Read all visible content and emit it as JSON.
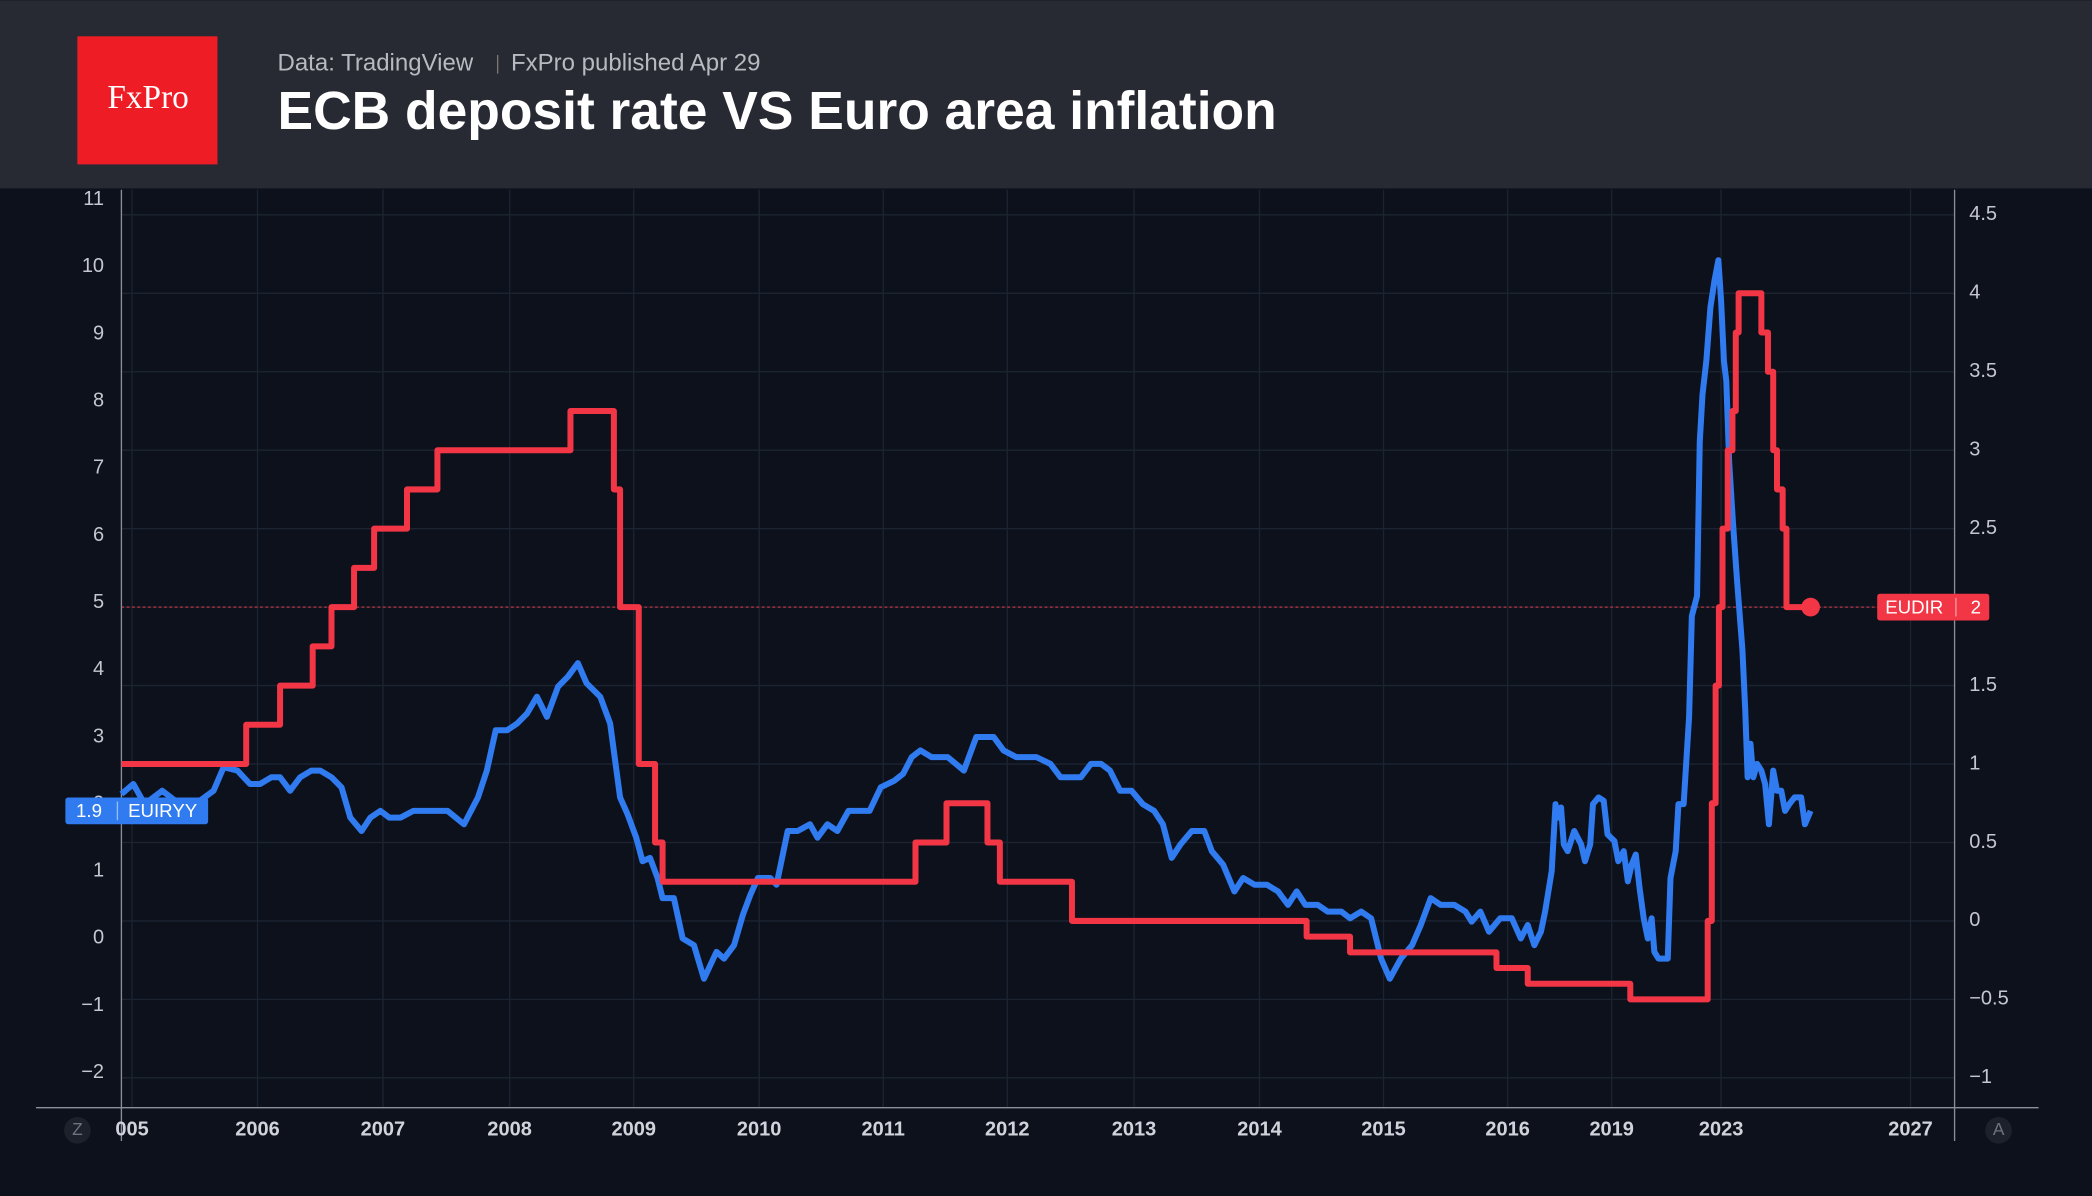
{
  "header": {
    "logo": "FxPro",
    "source": "Data: TradingView",
    "published": "FxPro published Apr 29"
  },
  "ui": {
    "left_button": "Z",
    "right_button": "A"
  },
  "chart_data": {
    "type": "line",
    "title": "ECB deposit rate VS Euro area inflation",
    "grid": true,
    "xlim": [
      2004.91,
      2027.93
    ],
    "xticks": [
      {
        "value": 2005,
        "label": "005"
      },
      2006,
      2007,
      2008,
      2009,
      2010,
      2011,
      2012,
      2013,
      2014,
      2015,
      2016,
      2019,
      2023,
      2027
    ],
    "ylim": [
      -2.52,
      11.15
    ],
    "yticks": [
      11,
      10,
      9,
      8,
      7,
      6,
      5,
      4,
      3,
      2,
      1,
      0,
      {
        "value": -1,
        "label": "−1"
      },
      {
        "value": -2,
        "label": "−2"
      }
    ],
    "y2lim": [
      -1.19,
      4.66
    ],
    "y2ticks": [
      4.5,
      4,
      3.5,
      3,
      2.5,
      2,
      1.5,
      1,
      0.5,
      0,
      {
        "value": -0.5,
        "label": "−0.5"
      },
      {
        "value": -1,
        "label": "−1"
      }
    ],
    "series": [
      {
        "name": "EUIRYY",
        "color": "#2f7bef",
        "axis": "y",
        "x": [
          2004.91,
          2005.01,
          2005.1,
          2005.24,
          2005.38,
          2005.54,
          2005.65,
          2005.73,
          2005.84,
          2005.94,
          2006.02,
          2006.11,
          2006.18,
          2006.26,
          2006.34,
          2006.43,
          2006.5,
          2006.59,
          2006.67,
          2006.74,
          2006.83,
          2006.9,
          2006.98,
          2007.05,
          2007.14,
          2007.24,
          2007.51,
          2007.64,
          2007.75,
          2007.82,
          2007.89,
          2007.98,
          2008.06,
          2008.14,
          2008.22,
          2008.3,
          2008.39,
          2008.47,
          2008.55,
          2008.62,
          2008.73,
          2008.81,
          2008.89,
          2008.95,
          2009.02,
          2009.07,
          2009.13,
          2009.19,
          2009.23,
          2009.32,
          2009.39,
          2009.48,
          2009.56,
          2009.66,
          2009.72,
          2009.8,
          2009.87,
          2009.93,
          2009.99,
          2010.09,
          2010.14,
          2010.23,
          2010.31,
          2010.41,
          2010.47,
          2010.55,
          2010.63,
          2010.72,
          2010.89,
          2010.98,
          2011.09,
          2011.16,
          2011.23,
          2011.3,
          2011.39,
          2011.52,
          2011.65,
          2011.75,
          2011.89,
          2011.97,
          2012.07,
          2012.23,
          2012.34,
          2012.42,
          2012.58,
          2012.66,
          2012.74,
          2012.81,
          2012.89,
          2012.98,
          2013.07,
          2013.16,
          2013.23,
          2013.3,
          2013.37,
          2013.46,
          2013.56,
          2013.62,
          2013.71,
          2013.8,
          2013.87,
          2013.96,
          2014.06,
          2014.15,
          2014.23,
          2014.3,
          2014.37,
          2014.47,
          2014.55,
          2014.66,
          2014.73,
          2014.82,
          2014.9,
          2014.98,
          2015.05,
          2015.14,
          2015.23,
          2015.3,
          2015.38,
          2015.46,
          2015.57,
          2015.66,
          2015.71,
          2015.78,
          2015.85,
          2015.94,
          2016.12,
          2016.38,
          2016.58,
          2016.77,
          2016.96,
          2017.08,
          2017.27,
          2017.38,
          2017.46,
          2017.54,
          2017.62,
          2017.73,
          2017.92,
          2018.12,
          2018.23,
          2018.38,
          2018.46,
          2018.62,
          2018.77,
          2018.88,
          2019.1,
          2019.24,
          2019.44,
          2019.59,
          2019.73,
          2019.88,
          2020.02,
          2020.17,
          2020.32,
          2020.46,
          2020.56,
          2020.71,
          2021.05,
          2021.15,
          2021.34,
          2021.44,
          2021.63,
          2021.83,
          2021.93,
          2022.12,
          2022.22,
          2022.32,
          2022.46,
          2022.61,
          2022.76,
          2022.9,
          2023.0,
          2023.06,
          2023.11,
          2023.17,
          2023.25,
          2023.34,
          2023.45,
          2023.51,
          2023.56,
          2023.62,
          2023.68,
          2023.76,
          2023.85,
          2023.93,
          2024.01,
          2024.1,
          2024.18,
          2024.27,
          2024.35,
          2024.44,
          2024.55,
          2024.69,
          2024.77,
          2024.89
        ],
        "values": [
          2.15,
          2.3,
          2.0,
          2.2,
          2.0,
          2.05,
          2.2,
          2.55,
          2.5,
          2.3,
          2.3,
          2.4,
          2.4,
          2.2,
          2.4,
          2.5,
          2.5,
          2.4,
          2.25,
          1.8,
          1.6,
          1.8,
          1.9,
          1.8,
          1.8,
          1.9,
          1.9,
          1.7,
          2.1,
          2.5,
          3.1,
          3.1,
          3.2,
          3.35,
          3.6,
          3.3,
          3.75,
          3.9,
          4.1,
          3.8,
          3.6,
          3.2,
          2.1,
          1.85,
          1.5,
          1.15,
          1.2,
          0.9,
          0.6,
          0.6,
          0.0,
          -0.1,
          -0.6,
          -0.2,
          -0.3,
          -0.1,
          0.35,
          0.65,
          0.9,
          0.9,
          0.8,
          1.6,
          1.6,
          1.7,
          1.5,
          1.7,
          1.6,
          1.9,
          1.9,
          2.25,
          2.35,
          2.45,
          2.7,
          2.8,
          2.7,
          2.7,
          2.5,
          3.0,
          3.0,
          2.8,
          2.7,
          2.7,
          2.6,
          2.4,
          2.4,
          2.6,
          2.6,
          2.5,
          2.2,
          2.2,
          2.0,
          1.9,
          1.7,
          1.2,
          1.4,
          1.6,
          1.6,
          1.3,
          1.1,
          0.7,
          0.9,
          0.8,
          0.8,
          0.7,
          0.5,
          0.7,
          0.5,
          0.5,
          0.4,
          0.4,
          0.3,
          0.4,
          0.3,
          -0.3,
          -0.6,
          -0.3,
          -0.1,
          0.2,
          0.6,
          0.5,
          0.5,
          0.4,
          0.25,
          0.4,
          0.1,
          0.3,
          0.3,
          0.0,
          0.2,
          -0.1,
          0.1,
          0.4,
          1.0,
          2.0,
          1.8,
          1.95,
          1.4,
          1.3,
          1.6,
          1.4,
          1.15,
          1.4,
          2.0,
          2.1,
          2.05,
          1.55,
          1.45,
          1.15,
          1.3,
          0.85,
          1.1,
          1.25,
          0.75,
          0.3,
          0.0,
          0.3,
          -0.2,
          -0.3,
          -0.3,
          0.9,
          1.3,
          2.0,
          2.0,
          3.3,
          4.8,
          5.1,
          7.4,
          8.1,
          8.6,
          9.4,
          9.8,
          10.1,
          9.5,
          8.6,
          8.3,
          7.1,
          6.2,
          5.3,
          4.3,
          3.4,
          2.4,
          2.9,
          2.4,
          2.6,
          2.5,
          2.3,
          1.7,
          2.5,
          2.2,
          2.2,
          1.9,
          2.0,
          2.1,
          2.1,
          1.7,
          1.9
        ]
      },
      {
        "name": "EUDIR",
        "color": "#f23645",
        "axis": "y2",
        "step": "after",
        "x": [
          2004.91,
          2005.91,
          2006.18,
          2006.44,
          2006.59,
          2006.77,
          2006.93,
          2007.19,
          2007.43,
          2008.49,
          2008.84,
          2008.89,
          2009.04,
          2009.17,
          2009.23,
          2011.26,
          2011.51,
          2011.84,
          2011.94,
          2012.51,
          2014.38,
          2014.73,
          2015.91,
          2016.58,
          2019.68,
          2022.51,
          2022.66,
          2022.8,
          2022.92,
          2023.03,
          2023.14,
          2023.24,
          2023.31,
          2023.37,
          2023.85,
          2023.99,
          2024.1,
          2024.18,
          2024.3,
          2024.38,
          2024.89
        ],
        "values": [
          1.0,
          1.25,
          1.5,
          1.75,
          2.0,
          2.25,
          2.5,
          2.75,
          3.0,
          3.25,
          2.75,
          2.0,
          1.0,
          0.5,
          0.25,
          0.5,
          0.75,
          0.5,
          0.25,
          0.0,
          -0.1,
          -0.2,
          -0.3,
          -0.4,
          -0.5,
          0.0,
          0.75,
          1.5,
          2.0,
          2.5,
          3.0,
          3.25,
          3.75,
          4.0,
          3.75,
          3.5,
          3.0,
          2.75,
          2.5,
          2.0,
          2.0
        ]
      }
    ]
  }
}
